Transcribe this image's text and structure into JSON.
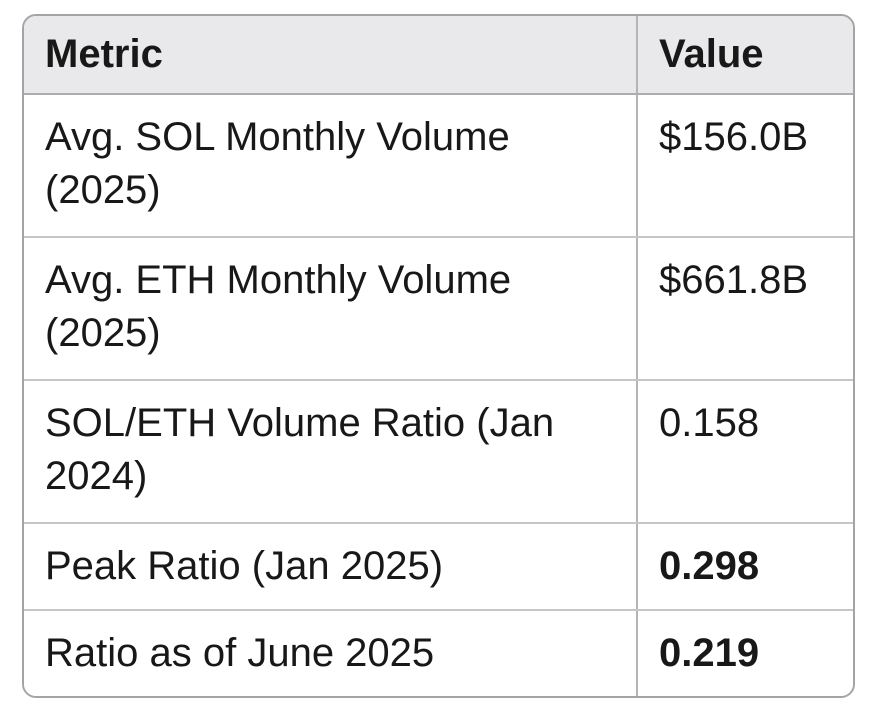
{
  "table": {
    "header": {
      "metric": "Metric",
      "value": "Value"
    },
    "rows": [
      {
        "metric": "Avg. SOL Monthly Volume (2025)",
        "value": "$156.0B",
        "value_bold": false
      },
      {
        "metric": "Avg. ETH Monthly Volume (2025)",
        "value": "$661.8B",
        "value_bold": false
      },
      {
        "metric": "SOL/ETH Volume Ratio (Jan 2024)",
        "value": "0.158",
        "value_bold": false
      },
      {
        "metric": "Peak Ratio (Jan 2025)",
        "value": "0.298",
        "value_bold": true
      },
      {
        "metric": "Ratio as of June 2025",
        "value": "0.219",
        "value_bold": true
      }
    ],
    "colors": {
      "header_bg": "#e9e9eb",
      "outer_border": "#a4a4a8",
      "header_divider": "#aeaeb2",
      "column_divider": "#b4b4b6",
      "row_divider": "#c6c6c8",
      "text": "#181818",
      "page_bg": "#ffffff"
    }
  },
  "chart_data": {
    "type": "table",
    "columns": [
      "Metric",
      "Value"
    ],
    "rows": [
      [
        "Avg. SOL Monthly Volume (2025)",
        "$156.0B"
      ],
      [
        "Avg. ETH Monthly Volume (2025)",
        "$661.8B"
      ],
      [
        "SOL/ETH Volume Ratio (Jan 2024)",
        "0.158"
      ],
      [
        "Peak Ratio (Jan 2025)",
        "0.298"
      ],
      [
        "Ratio as of June 2025",
        "0.219"
      ]
    ],
    "emphasized_rows": [
      3,
      4
    ],
    "title": "",
    "legend_position": "none",
    "grid": true
  }
}
